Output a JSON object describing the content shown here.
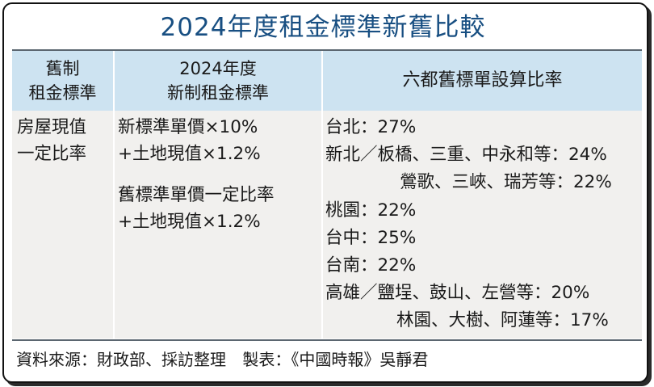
{
  "title": "2024年度租金標準新舊比較",
  "headers": {
    "old_standard": [
      "舊制",
      "租金標準"
    ],
    "new_standard": [
      "2024年度",
      "新制租金標準"
    ],
    "ratio": "六都舊標單設算比率"
  },
  "row": {
    "old": [
      "房屋現值",
      "一定比率"
    ],
    "new_formula_1": [
      "新標準單價×10%",
      "+土地現值×1.2%"
    ],
    "new_formula_2": [
      "舊標準單價一定比率",
      "+土地現值×1.2%"
    ],
    "rates": [
      {
        "text": "台北：27%",
        "indent": false
      },
      {
        "text": "新北／板橋、三重、中永和等：24%",
        "indent": false
      },
      {
        "text": "鶯歌、三峽、瑞芳等：22%",
        "indent": true
      },
      {
        "text": "桃園：22%",
        "indent": false
      },
      {
        "text": "台中：25%",
        "indent": false
      },
      {
        "text": "台南：22%",
        "indent": false
      },
      {
        "text": "高雄／鹽埕、鼓山、左營等：20%",
        "indent": false
      },
      {
        "text": "林園、大樹、阿蓮等：17%",
        "indent": true
      }
    ]
  },
  "footer": {
    "source": "資料來源：財政部、採訪整理",
    "maker": "製表：《中國時報》吳靜君"
  },
  "colors": {
    "title": "#184f82",
    "header_bg": "#cde3f1",
    "body_bg": "#f1f0ee"
  }
}
